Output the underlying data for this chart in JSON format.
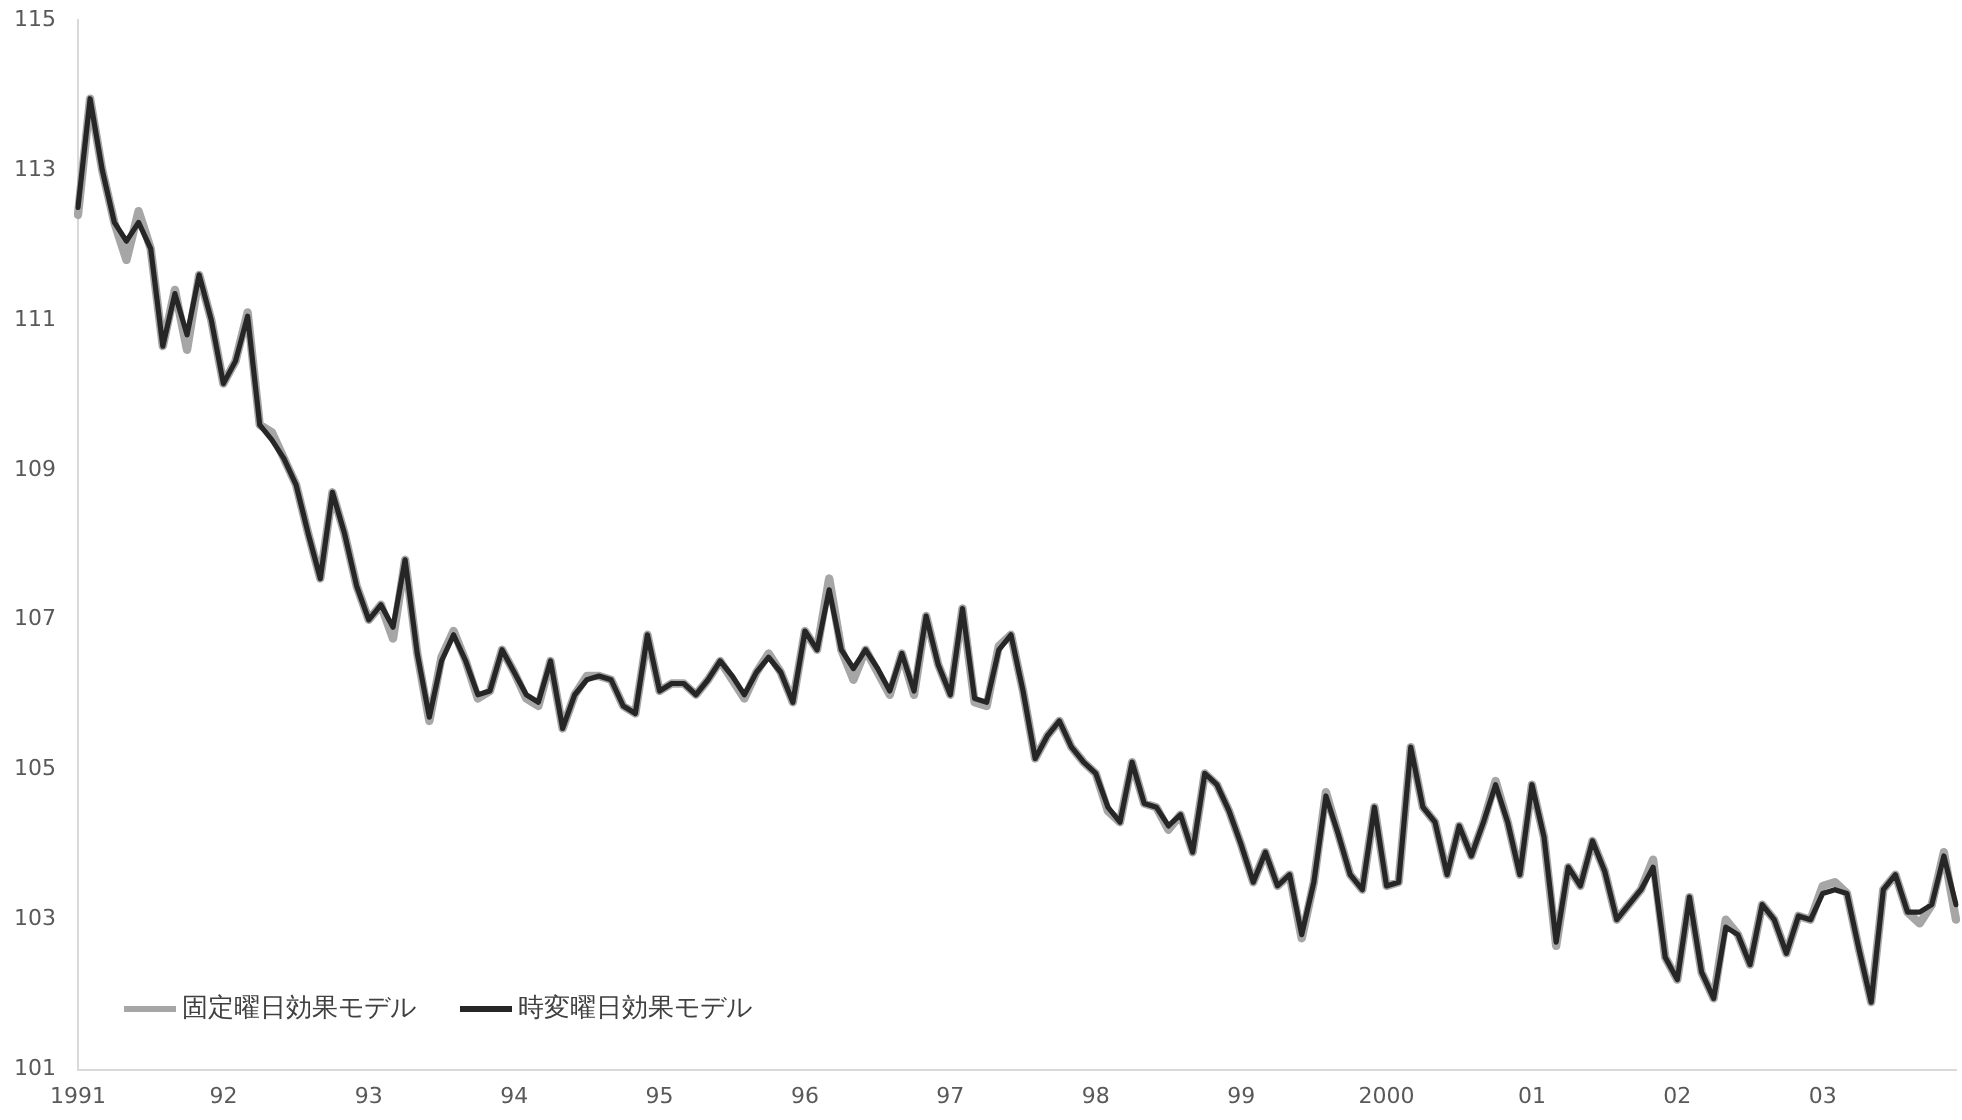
{
  "chart_data": {
    "type": "line",
    "categories": [
      "1991",
      null,
      null,
      null,
      null,
      null,
      null,
      null,
      null,
      null,
      null,
      null,
      "92",
      null,
      null,
      null,
      null,
      null,
      null,
      null,
      null,
      null,
      null,
      null,
      "93",
      null,
      null,
      null,
      null,
      null,
      null,
      null,
      null,
      null,
      null,
      null,
      "94",
      null,
      null,
      null,
      null,
      null,
      null,
      null,
      null,
      null,
      null,
      null,
      "95",
      null,
      null,
      null,
      null,
      null,
      null,
      null,
      null,
      null,
      null,
      null,
      "96",
      null,
      null,
      null,
      null,
      null,
      null,
      null,
      null,
      null,
      null,
      null,
      "97",
      null,
      null,
      null,
      null,
      null,
      null,
      null,
      null,
      null,
      null,
      null,
      "98",
      null,
      null,
      null,
      null,
      null,
      null,
      null,
      null,
      null,
      null,
      null,
      "99",
      null,
      null,
      null,
      null,
      null,
      null,
      null,
      null,
      null,
      null,
      null,
      "2000",
      null,
      null,
      null,
      null,
      null,
      null,
      null,
      null,
      null,
      null,
      null,
      "01",
      null,
      null,
      null,
      null,
      null,
      null,
      null,
      null,
      null,
      null,
      null,
      "02",
      null,
      null,
      null,
      null,
      null,
      null,
      null,
      null,
      null,
      null,
      null,
      "03",
      null,
      null,
      null,
      null,
      null,
      null,
      null,
      null,
      null,
      null,
      null
    ],
    "series": [
      {
        "name": "固定曜日効果モデル",
        "color": "#a6a6a6",
        "values": [
          112.4,
          113.95,
          113.0,
          112.3,
          111.8,
          112.45,
          111.95,
          110.65,
          111.4,
          110.6,
          111.6,
          111.0,
          110.15,
          110.45,
          111.1,
          109.6,
          109.5,
          109.15,
          108.8,
          108.15,
          107.55,
          108.7,
          108.15,
          107.45,
          107.0,
          107.2,
          106.75,
          107.8,
          106.55,
          105.65,
          106.5,
          106.85,
          106.45,
          105.95,
          106.05,
          106.6,
          106.3,
          105.95,
          105.85,
          106.45,
          105.55,
          106.0,
          106.25,
          106.25,
          106.2,
          105.85,
          105.75,
          106.8,
          106.05,
          106.15,
          106.15,
          106.0,
          106.2,
          106.45,
          106.2,
          105.95,
          106.3,
          106.55,
          106.3,
          105.9,
          106.85,
          106.6,
          107.55,
          106.6,
          106.2,
          106.6,
          106.3,
          106.0,
          106.55,
          106.0,
          107.05,
          106.4,
          106.0,
          107.15,
          105.9,
          105.85,
          106.65,
          106.8,
          106.05,
          105.15,
          105.45,
          105.65,
          105.3,
          105.1,
          104.95,
          104.45,
          104.3,
          105.1,
          104.55,
          104.5,
          104.2,
          104.4,
          103.9,
          104.95,
          104.8,
          104.45,
          104.0,
          103.5,
          103.9,
          103.45,
          103.6,
          102.75,
          103.5,
          104.7,
          104.15,
          103.6,
          103.4,
          104.5,
          103.45,
          103.5,
          105.3,
          104.5,
          104.3,
          103.6,
          104.25,
          103.85,
          104.3,
          104.85,
          104.3,
          103.6,
          104.8,
          104.1,
          102.65,
          103.7,
          103.45,
          104.05,
          103.65,
          103.0,
          103.2,
          103.4,
          103.8,
          102.5,
          102.2,
          103.3,
          102.3,
          101.95,
          103.0,
          102.8,
          102.4,
          103.2,
          103.0,
          102.55,
          103.05,
          103.0,
          103.45,
          103.5,
          103.35,
          102.6,
          101.9,
          103.4,
          103.6,
          103.1,
          102.95,
          103.2,
          103.9,
          103.0
        ]
      },
      {
        "name": "時変曜日効果モデル",
        "color": "#262626",
        "values": [
          112.5,
          113.95,
          113.0,
          112.3,
          112.05,
          112.3,
          111.95,
          110.65,
          111.35,
          110.8,
          111.6,
          111.0,
          110.15,
          110.45,
          111.05,
          109.6,
          109.4,
          109.15,
          108.8,
          108.15,
          107.55,
          108.7,
          108.15,
          107.45,
          107.0,
          107.2,
          106.9,
          107.8,
          106.55,
          105.7,
          106.45,
          106.8,
          106.45,
          106.0,
          106.05,
          106.6,
          106.3,
          106.0,
          105.9,
          106.45,
          105.55,
          106.0,
          106.2,
          106.25,
          106.2,
          105.85,
          105.75,
          106.8,
          106.05,
          106.15,
          106.15,
          106.0,
          106.2,
          106.45,
          106.25,
          106.0,
          106.3,
          106.5,
          106.3,
          105.9,
          106.85,
          106.6,
          107.4,
          106.6,
          106.35,
          106.6,
          106.35,
          106.05,
          106.55,
          106.05,
          107.05,
          106.4,
          106.0,
          107.15,
          105.95,
          105.9,
          106.6,
          106.8,
          106.05,
          105.15,
          105.45,
          105.65,
          105.3,
          105.1,
          104.95,
          104.5,
          104.3,
          105.1,
          104.55,
          104.5,
          104.25,
          104.4,
          103.9,
          104.95,
          104.8,
          104.45,
          104.0,
          103.5,
          103.9,
          103.45,
          103.6,
          102.8,
          103.5,
          104.65,
          104.15,
          103.6,
          103.4,
          104.5,
          103.45,
          103.5,
          105.3,
          104.5,
          104.3,
          103.6,
          104.25,
          103.85,
          104.3,
          104.8,
          104.3,
          103.6,
          104.8,
          104.1,
          102.7,
          103.7,
          103.45,
          104.05,
          103.65,
          103.0,
          103.2,
          103.4,
          103.7,
          102.5,
          102.2,
          103.3,
          102.3,
          101.95,
          102.9,
          102.8,
          102.4,
          103.2,
          103.0,
          102.55,
          103.05,
          103.0,
          103.35,
          103.4,
          103.35,
          102.6,
          101.9,
          103.4,
          103.6,
          103.1,
          103.1,
          103.2,
          103.85,
          103.2
        ]
      }
    ],
    "ylim": [
      101,
      115
    ],
    "yticks": [
      101,
      103,
      105,
      107,
      109,
      111,
      113,
      115
    ],
    "grid": false,
    "legend": "bottom left",
    "marker": "none",
    "line_style": "solid"
  }
}
